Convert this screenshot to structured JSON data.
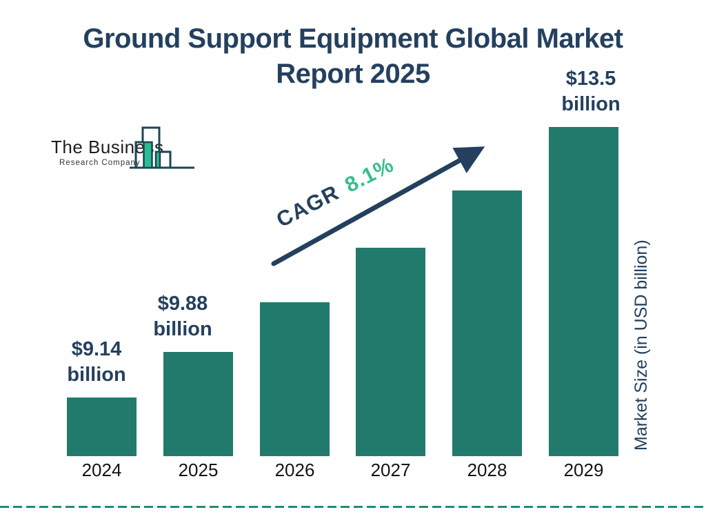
{
  "header": {
    "title_line1": "Ground Support Equipment Global Market",
    "title_line2": "Report 2025"
  },
  "logo": {
    "line1": "The Business",
    "line2": "Research Company"
  },
  "cagr": {
    "label": "CAGR",
    "value": "8.1%"
  },
  "y_axis_label": "Market Size (in USD billion)",
  "chart_data": {
    "type": "bar",
    "title": "Ground Support Equipment Global Market Report 2025",
    "categories": [
      "2024",
      "2025",
      "2026",
      "2027",
      "2028",
      "2029"
    ],
    "values": [
      9.14,
      9.88,
      10.68,
      11.55,
      12.48,
      13.5
    ],
    "unit": "USD billion",
    "xlabel": "",
    "ylabel": "Market Size (in USD billion)",
    "cagr_pct": 8.1,
    "legend": "none",
    "grid": false,
    "axis_range_hint": [
      8.2,
      13.6
    ],
    "annotations": [
      {
        "category": "2024",
        "index": 0,
        "lines": [
          "$9.14",
          "billion"
        ]
      },
      {
        "category": "2025",
        "index": 1,
        "lines": [
          "$9.88",
          "billion"
        ]
      },
      {
        "category": "2029",
        "index": 5,
        "lines": [
          "$13.5",
          "billion"
        ]
      }
    ]
  },
  "colors": {
    "navy": "#24405e",
    "bar_teal": "#217a6c",
    "cagr_green": "#3abd8b",
    "divider_teal": "#1f8a7e",
    "logo_outline": "#1d4554",
    "logo_fill_teal": "#2abd94"
  }
}
